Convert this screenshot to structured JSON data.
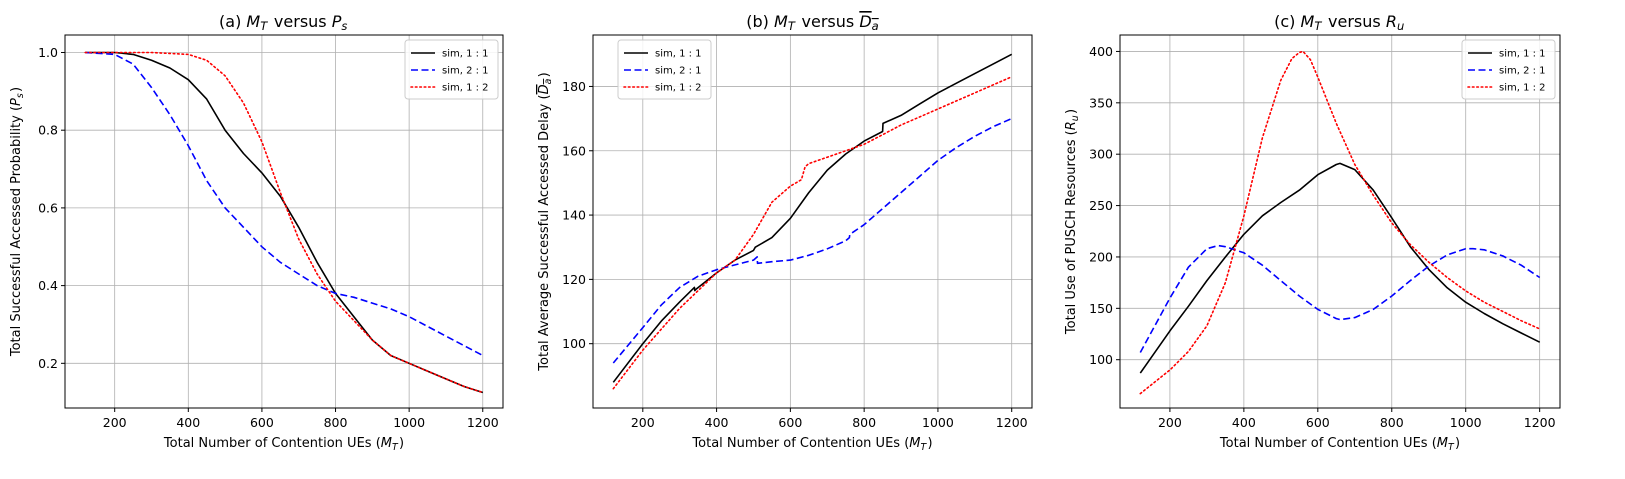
{
  "chart_data": [
    {
      "type": "line",
      "title": "(a) M_T versus P_s",
      "title_parts": {
        "prefix": "(a) ",
        "a_base": "M",
        "a_sub": "T",
        "mid": " versus ",
        "b_base": "P",
        "b_sub": "s",
        "b_overline": false
      },
      "xlabel": "Total Number of Contention UEs (M_T)",
      "xlabel_parts": {
        "text": "Total Number of Contention UEs (",
        "base": "M",
        "sub": "T",
        "end": ")"
      },
      "ylabel": "Total Successful Accessed Probability (P_s)",
      "ylabel_parts": {
        "text": "Total Successful Accessed Probability (",
        "base": "P",
        "sub": "s",
        "end": ")"
      },
      "xlim": [
        65,
        1255
      ],
      "ylim": [
        0.085,
        1.045
      ],
      "xticks": [
        200,
        400,
        600,
        800,
        1000,
        1200
      ],
      "yticks": [
        0.2,
        0.4,
        0.6,
        0.8,
        1.0
      ],
      "ytick_labels": [
        "0.2",
        "0.4",
        "0.6",
        "0.8",
        "1.0"
      ],
      "grid": true,
      "legend_position": "upper right",
      "series": [
        {
          "name": "sim, 1 : 1",
          "color": "#000000",
          "style": "solid",
          "x": [
            120,
            200,
            250,
            300,
            350,
            400,
            450,
            500,
            550,
            600,
            650,
            700,
            750,
            800,
            850,
            900,
            950,
            1000,
            1050,
            1100,
            1150,
            1200
          ],
          "y": [
            1.0,
            1.0,
            0.995,
            0.98,
            0.96,
            0.93,
            0.88,
            0.8,
            0.74,
            0.69,
            0.63,
            0.55,
            0.46,
            0.38,
            0.32,
            0.26,
            0.22,
            0.2,
            0.18,
            0.16,
            0.14,
            0.125
          ]
        },
        {
          "name": "sim, 2 : 1",
          "color": "#0000ff",
          "style": "dashed",
          "x": [
            120,
            200,
            250,
            300,
            350,
            400,
            450,
            500,
            550,
            600,
            650,
            700,
            750,
            800,
            850,
            900,
            950,
            1000,
            1050,
            1100,
            1150,
            1200
          ],
          "y": [
            1.0,
            0.995,
            0.97,
            0.91,
            0.84,
            0.76,
            0.67,
            0.6,
            0.55,
            0.5,
            0.46,
            0.43,
            0.4,
            0.38,
            0.37,
            0.355,
            0.34,
            0.32,
            0.295,
            0.27,
            0.245,
            0.22
          ]
        },
        {
          "name": "sim, 1 : 2",
          "color": "#ff0000",
          "style": "dotted",
          "x": [
            120,
            200,
            300,
            400,
            450,
            500,
            550,
            600,
            650,
            700,
            750,
            800,
            850,
            900,
            950,
            1000,
            1050,
            1100,
            1150,
            1200
          ],
          "y": [
            1.0,
            1.0,
            1.0,
            0.995,
            0.98,
            0.94,
            0.87,
            0.77,
            0.64,
            0.52,
            0.43,
            0.36,
            0.31,
            0.26,
            0.22,
            0.2,
            0.18,
            0.16,
            0.14,
            0.125
          ]
        }
      ]
    },
    {
      "type": "line",
      "title": "(b) M_T versus D_a (overline)",
      "title_parts": {
        "prefix": "(b) ",
        "a_base": "M",
        "a_sub": "T",
        "mid": " versus ",
        "b_base": "D",
        "b_sub": "a",
        "b_overline": true
      },
      "xlabel": "Total Number of Contention UEs (M_T)",
      "xlabel_parts": {
        "text": "Total Number of Contention UEs (",
        "base": "M",
        "sub": "T",
        "end": ")"
      },
      "ylabel": "Total Average Successful Accessed Delay (D_a overline)",
      "ylabel_parts": {
        "text": "Total Average Successful Accessed Delay (",
        "base": "D",
        "sub": "a",
        "end": ")",
        "overline": true
      },
      "xlim": [
        65,
        1255
      ],
      "ylim": [
        80,
        196
      ],
      "xticks": [
        200,
        400,
        600,
        800,
        1000,
        1200
      ],
      "yticks": [
        100,
        120,
        140,
        160,
        180
      ],
      "ytick_labels": [
        "100",
        "120",
        "140",
        "160",
        "180"
      ],
      "grid": true,
      "legend_position": "upper left",
      "series": [
        {
          "name": "sim, 1 : 1",
          "color": "#000000",
          "style": "solid",
          "x": [
            120,
            200,
            250,
            300,
            340,
            341,
            345,
            400,
            450,
            500,
            505,
            550,
            600,
            650,
            700,
            750,
            800,
            850,
            851,
            900,
            950,
            1000,
            1050,
            1100,
            1150,
            1200
          ],
          "y": [
            88,
            100,
            107,
            113,
            117.5,
            116.5,
            117,
            122,
            126,
            129,
            130,
            133,
            139,
            147,
            154,
            159,
            163,
            166,
            168.5,
            171,
            174.5,
            178,
            181,
            184,
            187,
            190
          ]
        },
        {
          "name": "sim, 2 : 1",
          "color": "#0000ff",
          "style": "dashed",
          "x": [
            120,
            200,
            250,
            300,
            350,
            400,
            450,
            500,
            510,
            511,
            550,
            600,
            650,
            700,
            750,
            760,
            761,
            800,
            850,
            900,
            950,
            1000,
            1050,
            1100,
            1150,
            1200
          ],
          "y": [
            94,
            105,
            112,
            117.5,
            121,
            123,
            124.5,
            126,
            127,
            125,
            125.5,
            126,
            127.5,
            129.5,
            132,
            133,
            134,
            137,
            142,
            147,
            152,
            157,
            161,
            164.5,
            167.5,
            170
          ]
        },
        {
          "name": "sim, 1 : 2",
          "color": "#ff0000",
          "style": "dotted",
          "x": [
            120,
            200,
            300,
            400,
            450,
            500,
            550,
            600,
            630,
            640,
            650,
            700,
            750,
            800,
            850,
            900,
            950,
            1000,
            1050,
            1100,
            1150,
            1200
          ],
          "y": [
            86,
            98,
            111,
            122,
            126,
            134,
            144,
            149,
            151,
            155,
            156,
            158,
            160,
            162,
            165,
            168,
            170.5,
            173,
            175.5,
            178,
            180.5,
            183
          ]
        }
      ]
    },
    {
      "type": "line",
      "title": "(c) M_T versus R_u",
      "title_parts": {
        "prefix": "(c) ",
        "a_base": "M",
        "a_sub": "T",
        "mid": " versus ",
        "b_base": "R",
        "b_sub": "u",
        "b_overline": false
      },
      "xlabel": "Total Number of Contention UEs (M_T)",
      "xlabel_parts": {
        "text": "Total Number of Contention UEs (",
        "base": "M",
        "sub": "T",
        "end": ")"
      },
      "ylabel": "Total Use of PUSCH Resources (R_u)",
      "ylabel_parts": {
        "text": "Total Use of PUSCH Resources (",
        "base": "R",
        "sub": "u",
        "end": ")"
      },
      "xlim": [
        65,
        1255
      ],
      "ylim": [
        53,
        416
      ],
      "xticks": [
        200,
        400,
        600,
        800,
        1000,
        1200
      ],
      "yticks": [
        100,
        150,
        200,
        250,
        300,
        350,
        400
      ],
      "ytick_labels": [
        "100",
        "150",
        "200",
        "250",
        "300",
        "350",
        "400"
      ],
      "grid": true,
      "legend_position": "upper right",
      "series": [
        {
          "name": "sim, 1 : 1",
          "color": "#000000",
          "style": "solid",
          "x": [
            120,
            200,
            250,
            300,
            350,
            400,
            450,
            500,
            550,
            600,
            650,
            660,
            700,
            750,
            800,
            850,
            900,
            950,
            1000,
            1050,
            1100,
            1150,
            1200
          ],
          "y": [
            87,
            128,
            152,
            177,
            200,
            222,
            240,
            253,
            265,
            280,
            290,
            291,
            285,
            265,
            238,
            210,
            188,
            170,
            156,
            145,
            135,
            126,
            117
          ]
        },
        {
          "name": "sim, 2 : 1",
          "color": "#0000ff",
          "style": "dashed",
          "x": [
            120,
            200,
            250,
            300,
            330,
            350,
            400,
            450,
            500,
            550,
            600,
            650,
            660,
            700,
            750,
            800,
            850,
            900,
            950,
            1000,
            1020,
            1050,
            1100,
            1150,
            1200
          ],
          "y": [
            107,
            160,
            190,
            208,
            211,
            210,
            204,
            192,
            177,
            162,
            149,
            140,
            139,
            141,
            149,
            162,
            177,
            191,
            202,
            208,
            208,
            207,
            201,
            192,
            180
          ]
        },
        {
          "name": "sim, 1 : 2",
          "color": "#ff0000",
          "style": "dotted",
          "x": [
            120,
            200,
            250,
            300,
            350,
            400,
            450,
            500,
            530,
            550,
            560,
            580,
            600,
            650,
            700,
            750,
            800,
            850,
            900,
            950,
            1000,
            1050,
            1100,
            1150,
            1200
          ],
          "y": [
            67,
            90,
            108,
            133,
            175,
            240,
            316,
            372,
            393,
            399,
            400,
            392,
            375,
            330,
            290,
            260,
            233,
            212,
            195,
            180,
            167,
            156,
            147,
            138,
            130
          ]
        }
      ]
    }
  ]
}
